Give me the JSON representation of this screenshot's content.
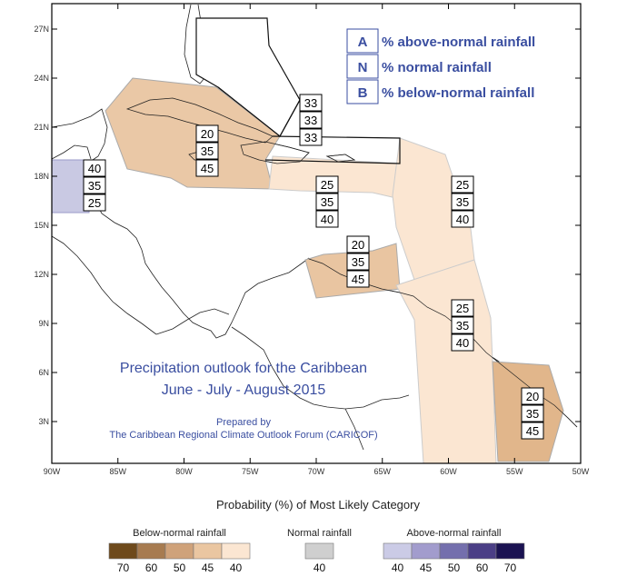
{
  "map": {
    "title_line1": "Precipitation outlook for the Caribbean",
    "title_line2": "June - July - August 2015",
    "prepared_by": "Prepared by",
    "forum": "The Caribbean Regional Climate Outlook Forum (CARICOF)",
    "lat_labels": [
      "27N",
      "24N",
      "21N",
      "18N",
      "15N",
      "12N",
      "9N",
      "6N",
      "3N"
    ],
    "lon_labels": [
      "90W",
      "85W",
      "80W",
      "75W",
      "70W",
      "65W",
      "60W",
      "55W",
      "50W"
    ],
    "legend": [
      {
        "letter": "A",
        "text": "% above-normal rainfall"
      },
      {
        "letter": "N",
        "text": "% normal rainfall"
      },
      {
        "letter": "B",
        "text": "% below-normal rainfall"
      }
    ],
    "regions": [
      {
        "id": "bahamas",
        "color": "#ffffff",
        "values": [
          "33",
          "33",
          "33"
        ]
      },
      {
        "id": "cuba-jamaica",
        "color": "#e8c29c",
        "values": [
          "20",
          "35",
          "45"
        ]
      },
      {
        "id": "belize",
        "color": "#c9c9e3",
        "values": [
          "40",
          "35",
          "25"
        ]
      },
      {
        "id": "hispaniola-pr",
        "color": "#fbe6d2",
        "values": [
          "25",
          "35",
          "40"
        ]
      },
      {
        "id": "leeward",
        "color": "#fbe6d2",
        "values": [
          "25",
          "35",
          "40"
        ]
      },
      {
        "id": "abc-islands",
        "color": "#e8c29c",
        "values": [
          "20",
          "35",
          "45"
        ]
      },
      {
        "id": "windward-trinidad",
        "color": "#fbe6d2",
        "values": [
          "25",
          "35",
          "40"
        ]
      },
      {
        "id": "guianas",
        "color": "#e1b68b",
        "values": [
          "20",
          "35",
          "45"
        ]
      }
    ]
  },
  "colorbar": {
    "heading": "Probability (%) of Most Likely Category",
    "groups": [
      {
        "label": "Below-normal rainfall",
        "colors": [
          "#6e4a1c",
          "#a77b50",
          "#cfa27a",
          "#eac6a1",
          "#fbe6d2"
        ],
        "ticks": [
          "70",
          "60",
          "50",
          "45",
          "40"
        ]
      },
      {
        "label": "Normal rainfall",
        "colors": [
          "#cfcfcf"
        ],
        "ticks": [
          "40"
        ]
      },
      {
        "label": "Above-normal rainfall",
        "colors": [
          "#cbcbe6",
          "#a29ccd",
          "#746fad",
          "#4b3f86",
          "#1b1352"
        ],
        "ticks": [
          "40",
          "45",
          "50",
          "60",
          "70"
        ]
      }
    ]
  }
}
